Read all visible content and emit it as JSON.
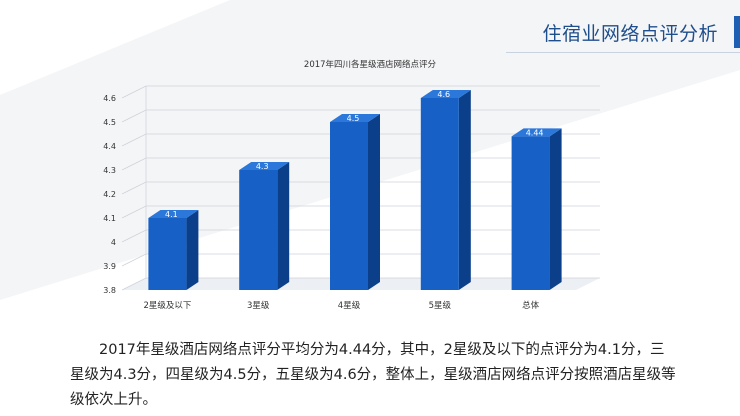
{
  "header": {
    "title": "住宿业网络点评分析"
  },
  "chart_data": {
    "type": "bar",
    "title": "2017年四川各星级酒店网络点评分",
    "categories": [
      "2星级及以下",
      "3星级",
      "4星级",
      "5星级",
      "总体"
    ],
    "values": [
      4.1,
      4.3,
      4.5,
      4.6,
      4.44
    ],
    "value_labels": [
      "4.1",
      "4.3",
      "4.5",
      "4.6",
      "4.44"
    ],
    "ylim": [
      3.8,
      4.6
    ],
    "yticks": [
      "3.8",
      "3.9",
      "4",
      "4.1",
      "4.2",
      "4.3",
      "4.4",
      "4.5",
      "4.6"
    ],
    "grid": true,
    "bar_color": "#1660c6",
    "style": "3d"
  },
  "summary": {
    "text": "2017年星级酒店网络点评分平均分为4.44分，其中，2星级及以下的点评分为4.1分，三星级为4.3分，四星级为4.5分，五星级为4.6分，整体上，星级酒店网络点评分按照酒店星级等级依次上升。"
  }
}
